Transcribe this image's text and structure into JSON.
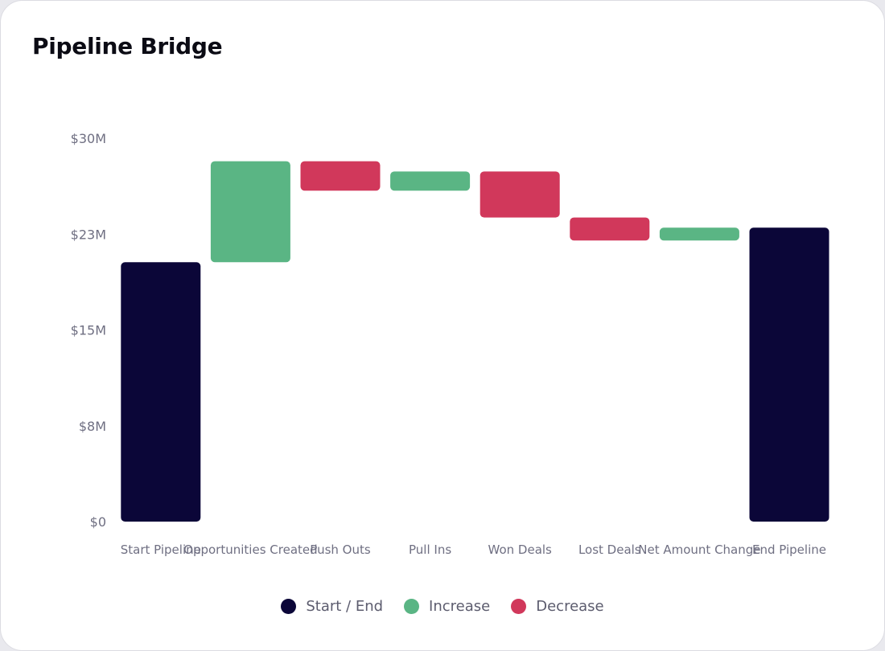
{
  "card": {
    "title": "Pipeline Bridge"
  },
  "colors": {
    "total": "#0b0638",
    "increase": "#5ab584",
    "decrease": "#d1385b",
    "tick_text": "#6f6f82",
    "background": "#ffffff"
  },
  "chart_data": {
    "type": "bar",
    "subtype": "waterfall",
    "title": "Pipeline Bridge",
    "xlabel": "",
    "ylabel": "",
    "grid": false,
    "ylim": [
      0,
      30000000
    ],
    "yticks": [
      {
        "value": 0,
        "label": "$0"
      },
      {
        "value": 7500000,
        "label": "$8M"
      },
      {
        "value": 15000000,
        "label": "$15M"
      },
      {
        "value": 22500000,
        "label": "$23M"
      },
      {
        "value": 30000000,
        "label": "$30M"
      }
    ],
    "categories": [
      "Start Pipeline",
      "Opportunities Created",
      "Push Outs",
      "Pull Ins",
      "Won Deals",
      "Lost Deals",
      "Net Amount Change",
      "End Pipeline"
    ],
    "bars": [
      {
        "category": "Start Pipeline",
        "kind": "total",
        "start": 0,
        "end": 20300000
      },
      {
        "category": "Opportunities Created",
        "kind": "increase",
        "start": 20300000,
        "end": 28200000
      },
      {
        "category": "Push Outs",
        "kind": "decrease",
        "start": 28200000,
        "end": 25900000
      },
      {
        "category": "Pull Ins",
        "kind": "increase",
        "start": 25900000,
        "end": 27400000
      },
      {
        "category": "Won Deals",
        "kind": "decrease",
        "start": 27400000,
        "end": 23800000
      },
      {
        "category": "Lost Deals",
        "kind": "decrease",
        "start": 23800000,
        "end": 22000000
      },
      {
        "category": "Net Amount Change",
        "kind": "increase",
        "start": 22000000,
        "end": 23000000
      },
      {
        "category": "End Pipeline",
        "kind": "total",
        "start": 0,
        "end": 23000000
      }
    ],
    "legend": {
      "position": "bottom",
      "items": [
        {
          "key": "total",
          "label": "Start / End"
        },
        {
          "key": "increase",
          "label": "Increase"
        },
        {
          "key": "decrease",
          "label": "Decrease"
        }
      ]
    }
  }
}
